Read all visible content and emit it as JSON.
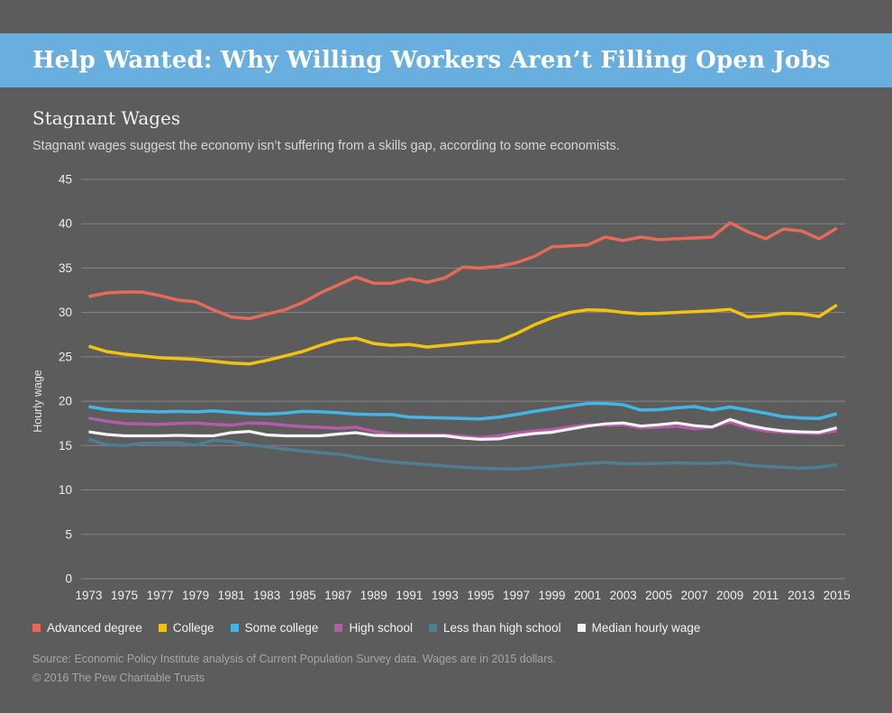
{
  "page": {
    "background": "#5c5c5c"
  },
  "banner": {
    "title": "Help Wanted: Why Willing Workers Aren’t Filling Open Jobs",
    "background": "#68aede"
  },
  "section": {
    "heading": "Stagnant Wages",
    "subtitle": "Stagnant wages suggest the economy isn’t suffering from a skills gap, according to some economists."
  },
  "chart_data": {
    "type": "line",
    "title": "Stagnant Wages",
    "xlabel": "",
    "ylabel": "Hourly wage",
    "ylim": [
      0,
      45
    ],
    "yticks": [
      0,
      5,
      10,
      15,
      20,
      25,
      30,
      35,
      40,
      45
    ],
    "xticks": [
      1973,
      1975,
      1977,
      1979,
      1981,
      1983,
      1985,
      1987,
      1989,
      1991,
      1993,
      1995,
      1997,
      1999,
      2001,
      2003,
      2005,
      2007,
      2009,
      2011,
      2013,
      2015
    ],
    "x_range": [
      1973,
      2015
    ],
    "grid": "horizontal",
    "legend_position": "bottom",
    "grid_color": "#848484",
    "series": [
      {
        "name": "Advanced degree",
        "color": "#e66a5a",
        "values": [
          31.8,
          32.2,
          32.3,
          32.3,
          31.9,
          31.4,
          31.2,
          30.3,
          29.5,
          29.3,
          29.8,
          30.3,
          31.1,
          32.2,
          33.1,
          34.0,
          33.3,
          33.3,
          33.8,
          33.4,
          33.9,
          35.1,
          35.0,
          35.2,
          35.6,
          36.3,
          37.4,
          37.5,
          37.6,
          38.5,
          38.1,
          38.5,
          38.2,
          38.3,
          38.4,
          38.5,
          40.1,
          39.1,
          38.3,
          39.4,
          39.2,
          38.3,
          39.5
        ]
      },
      {
        "name": "College",
        "color": "#f2c411",
        "values": [
          26.2,
          25.6,
          25.3,
          25.1,
          24.9,
          24.8,
          24.7,
          24.5,
          24.3,
          24.2,
          24.6,
          25.1,
          25.6,
          26.3,
          26.9,
          27.1,
          26.5,
          26.3,
          26.4,
          26.1,
          26.3,
          26.5,
          26.7,
          26.8,
          27.6,
          28.6,
          29.4,
          30.0,
          30.3,
          30.25,
          30.0,
          29.85,
          29.9,
          30.0,
          30.1,
          30.2,
          30.35,
          29.5,
          29.65,
          29.9,
          29.85,
          29.55,
          30.85
        ]
      },
      {
        "name": "Some college",
        "color": "#44b6e6",
        "values": [
          19.4,
          19.05,
          18.9,
          18.85,
          18.8,
          18.85,
          18.8,
          18.9,
          18.75,
          18.6,
          18.55,
          18.65,
          18.85,
          18.8,
          18.7,
          18.55,
          18.5,
          18.5,
          18.2,
          18.15,
          18.1,
          18.05,
          18.0,
          18.2,
          18.5,
          18.85,
          19.15,
          19.45,
          19.75,
          19.75,
          19.6,
          19.0,
          19.05,
          19.25,
          19.4,
          19.0,
          19.35,
          19.0,
          18.65,
          18.25,
          18.1,
          18.05,
          18.6
        ]
      },
      {
        "name": "High school",
        "color": "#b35ca8",
        "values": [
          18.1,
          17.75,
          17.5,
          17.45,
          17.4,
          17.5,
          17.55,
          17.4,
          17.3,
          17.55,
          17.5,
          17.3,
          17.15,
          17.05,
          16.95,
          17.05,
          16.6,
          16.3,
          16.2,
          16.2,
          16.2,
          16.05,
          15.9,
          16.1,
          16.4,
          16.65,
          16.8,
          17.1,
          17.35,
          17.3,
          17.35,
          17.0,
          17.1,
          17.2,
          16.9,
          17.1,
          17.65,
          17.05,
          16.65,
          16.5,
          16.4,
          16.35,
          16.7
        ]
      },
      {
        "name": "Less than high school",
        "color": "#4d7f92",
        "values": [
          15.7,
          15.1,
          15.0,
          15.25,
          15.3,
          15.3,
          15.05,
          15.6,
          15.45,
          15.1,
          14.85,
          14.6,
          14.4,
          14.2,
          14.05,
          13.7,
          13.4,
          13.15,
          13.0,
          12.85,
          12.7,
          12.55,
          12.45,
          12.4,
          12.35,
          12.5,
          12.65,
          12.85,
          13.0,
          13.1,
          12.95,
          12.95,
          13.0,
          13.05,
          13.0,
          13.0,
          13.1,
          12.8,
          12.65,
          12.55,
          12.45,
          12.55,
          12.85
        ]
      },
      {
        "name": "Median hourly wage",
        "color": "#f4f4f4",
        "values": [
          16.55,
          16.25,
          16.1,
          16.1,
          16.1,
          16.15,
          16.1,
          16.1,
          16.45,
          16.6,
          16.2,
          16.1,
          16.1,
          16.1,
          16.3,
          16.45,
          16.15,
          16.1,
          16.1,
          16.1,
          16.1,
          15.85,
          15.7,
          15.75,
          16.1,
          16.35,
          16.5,
          16.85,
          17.2,
          17.45,
          17.55,
          17.2,
          17.35,
          17.55,
          17.25,
          17.1,
          17.95,
          17.3,
          16.9,
          16.65,
          16.55,
          16.5,
          17.0
        ]
      }
    ]
  },
  "footer": {
    "source": "Source: Economic Policy Institute analysis of Current Population Survey data. Wages are in 2015 dollars.",
    "copyright": "© 2016 The Pew Charitable Trusts"
  }
}
